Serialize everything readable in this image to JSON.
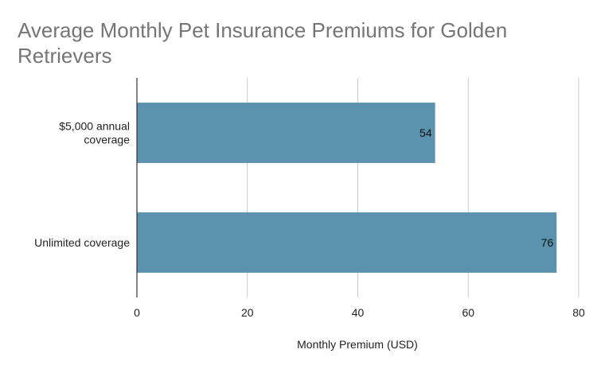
{
  "chart_data": {
    "type": "bar",
    "orientation": "horizontal",
    "title": "Average Monthly Pet Insurance Premiums for Golden Retrievers",
    "categories": [
      [
        "$5,000 annual",
        "coverage"
      ],
      [
        "Unlimited coverage"
      ]
    ],
    "series": [
      {
        "name": "Monthly Premium (USD)",
        "values": [
          54,
          76
        ]
      }
    ],
    "data_labels": [
      "54",
      "76"
    ],
    "xlabel": "Monthly Premium (USD)",
    "ylabel": "",
    "xlim": [
      0,
      80
    ],
    "x_ticks": [
      "0",
      "20",
      "40",
      "60",
      "80"
    ],
    "grid": "vertical",
    "legend": "none",
    "bar_color": "#5b92ae",
    "grid_color": "#cccccc",
    "axis_color": "#333333"
  }
}
